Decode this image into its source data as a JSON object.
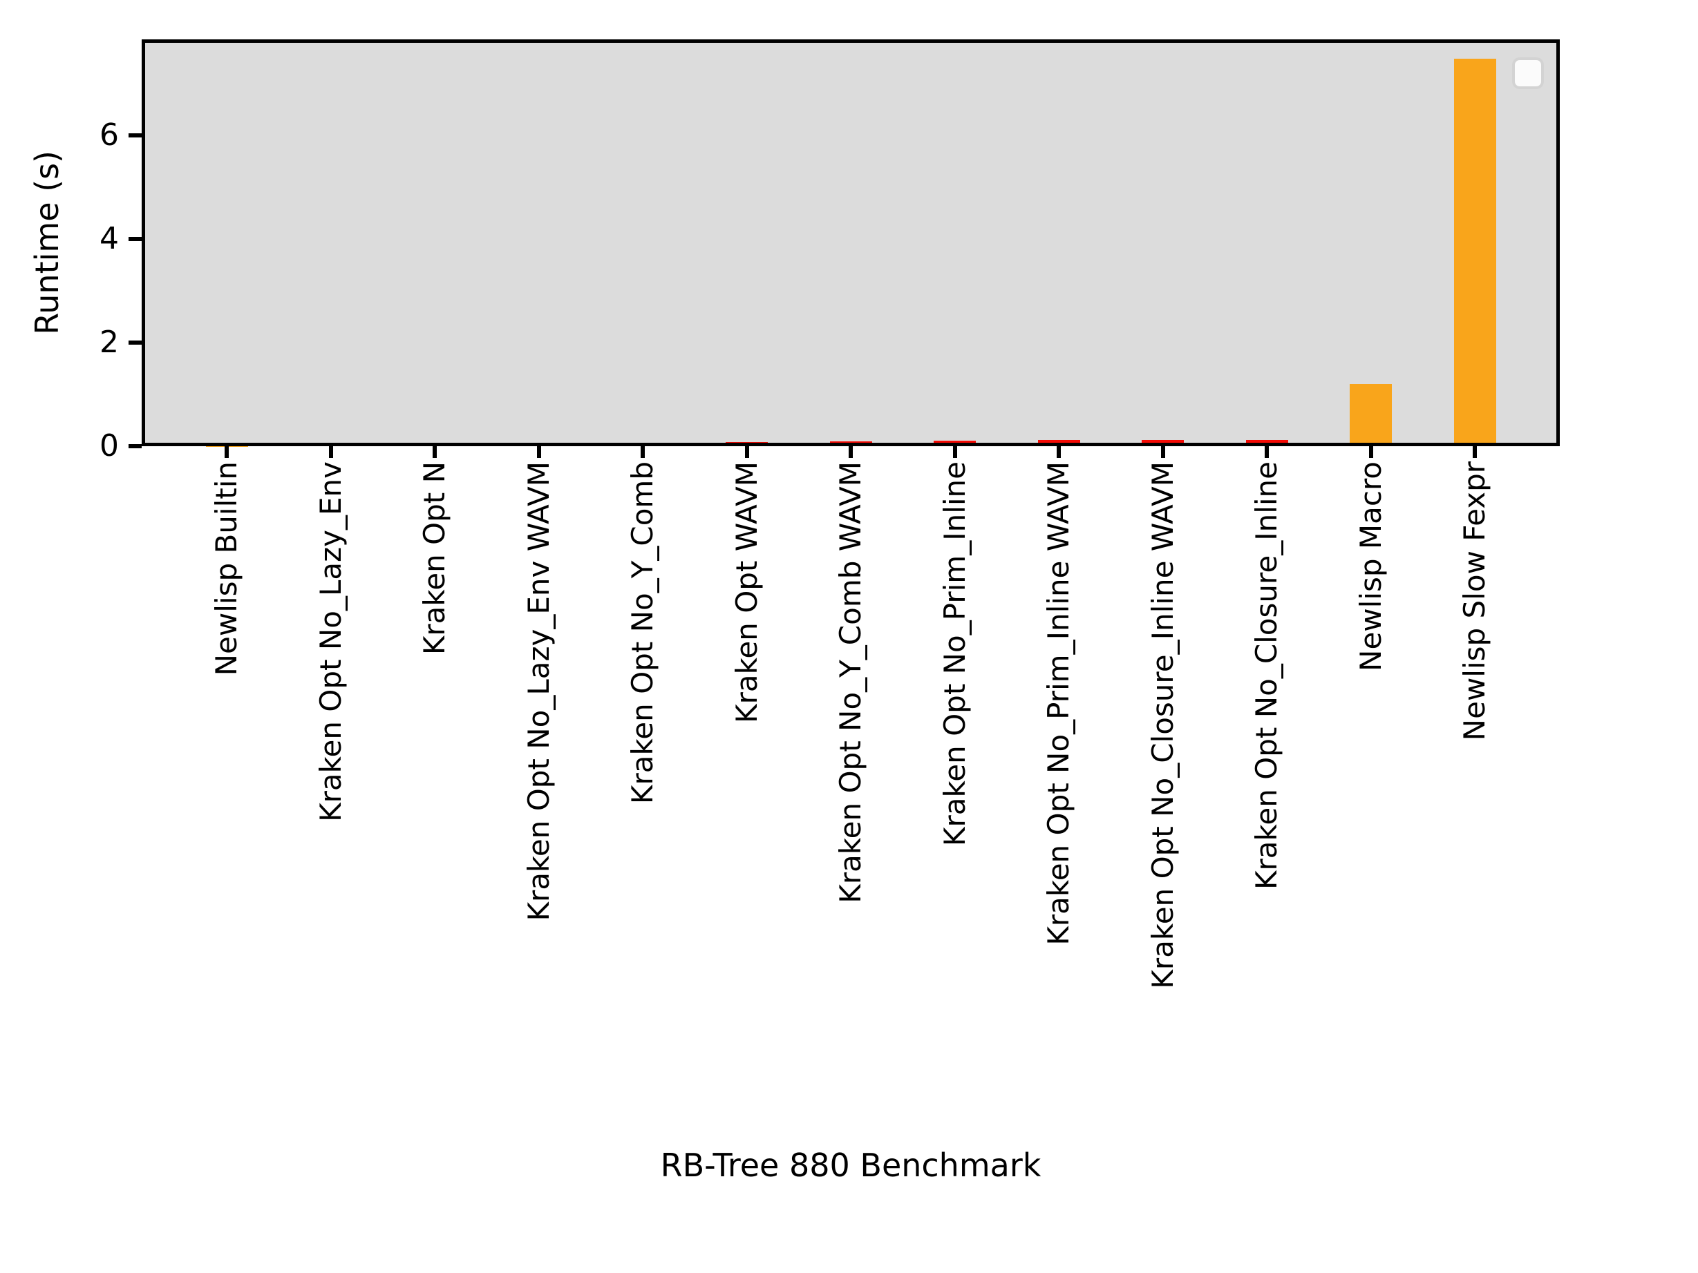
{
  "chart_data": {
    "type": "bar",
    "title": "",
    "xlabel": "RB-Tree 880 Benchmark",
    "ylabel": "Runtime (s)",
    "ylim": [
      0,
      7.85
    ],
    "yticks": [
      0,
      2,
      4,
      6
    ],
    "grid": false,
    "legend": {
      "visible": true,
      "entries": [],
      "position": "upper right"
    },
    "categories": [
      "Newlisp Builtin",
      "Kraken Opt No_Lazy_Env",
      "Kraken Opt N",
      "Kraken Opt No_Lazy_Env WAVM",
      "Kraken Opt No_Y_Comb",
      "Kraken Opt WAVM",
      "Kraken Opt No_Y_Comb WAVM",
      "Kraken Opt No_Prim_Inline",
      "Kraken Opt No_Prim_Inline WAVM",
      "Kraken Opt No_Closure_Inline WAVM",
      "Kraken Opt No_Closure_Inline",
      "Newlisp Macro",
      "Newlisp Slow Fexpr"
    ],
    "series": [
      {
        "name": "Runtime (s)",
        "values": [
          0.005,
          0.06,
          0.06,
          0.07,
          0.07,
          0.08,
          0.09,
          0.1,
          0.12,
          0.12,
          0.12,
          1.2,
          7.48
        ]
      }
    ],
    "bar_colors": [
      "#f9a51b",
      "#f40b05",
      "#f40b05",
      "#f40b05",
      "#f40b05",
      "#f40b05",
      "#f40b05",
      "#f40b05",
      "#f40b05",
      "#f40b05",
      "#f40b05",
      "#f9a51b",
      "#f9a51b"
    ]
  },
  "colors": {
    "red_bar": "#f40b05",
    "orange_bar": "#f9a51b",
    "plot_background": "#dcdcdc",
    "page_background": "#ffffff",
    "axis": "#000000",
    "legend_background": "#fbfbfb",
    "legend_border": "#d3d3d3"
  }
}
